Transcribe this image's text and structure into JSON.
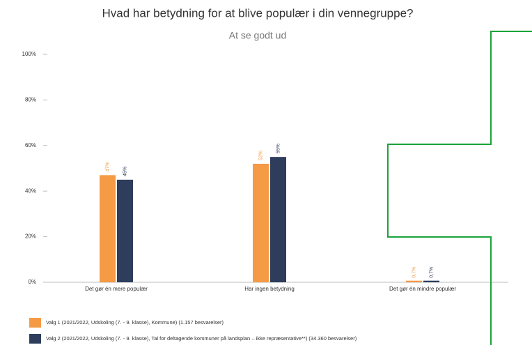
{
  "chart_data": {
    "type": "bar",
    "title": "Hvad har betydning for at blive populær i din vennegruppe?",
    "subtitle": "At se godt ud",
    "categories": [
      "Det gør én mere populær",
      "Har ingen betydning",
      "Det gør én mindre populær"
    ],
    "series": [
      {
        "name": "Valg 1 (2021/2022, Udskoling (7. - 9. klasse), Kommune) (1.157 besvarelser)",
        "color": "#f59a45",
        "values": [
          47,
          52,
          0.7
        ],
        "value_labels": [
          "47%",
          "52%",
          "0,7%"
        ]
      },
      {
        "name": "Valg 2 (2021/2022, Udskoling (7. - 9. klasse), Tal for deltagende kommuner på landsplan – ikke repræsentative**) (34.360 besvarelser)",
        "color": "#2e3d5c",
        "values": [
          45,
          55,
          0.7
        ],
        "value_labels": [
          "45%",
          "55%",
          "0,7%"
        ]
      }
    ],
    "ylim": [
      0,
      100
    ],
    "yticks": [
      {
        "value": 0,
        "label": "0%"
      },
      {
        "value": 20,
        "label": "20%"
      },
      {
        "value": 40,
        "label": "40%"
      },
      {
        "value": 60,
        "label": "60%"
      },
      {
        "value": 80,
        "label": "80%"
      },
      {
        "value": 100,
        "label": "100%"
      }
    ],
    "grid": false
  }
}
